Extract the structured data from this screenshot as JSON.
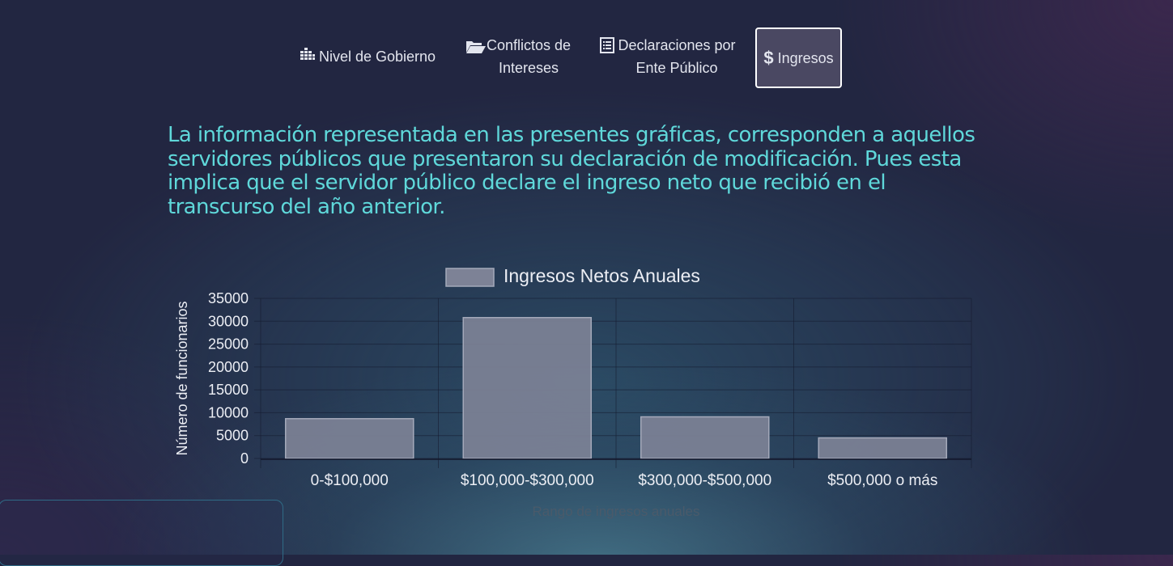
{
  "nav": {
    "tabs": [
      {
        "icon": "bar-list-icon",
        "label": "Nivel de Gobierno"
      },
      {
        "icon": "folder-open-icon",
        "label": "Conflictos de\nIntereses"
      },
      {
        "icon": "list-document-icon",
        "label": "Declaraciones por\nEnte Público"
      },
      {
        "icon": "dollar-icon",
        "label": "Ingresos",
        "active": true
      }
    ]
  },
  "info_text": "La información representada en las presentes gráficas, corresponden a aquellos servidores públicos que presentaron su declaración de modificación. Pues esta implica que el servidor público declare el ingreso neto que recibió en el transcurso del año anterior.",
  "colors": {
    "accent_text": "#5fd8da",
    "bar_fill": "#7d8296",
    "bar_border": "#a4a9ba",
    "active_tab_bg": "#4a4862"
  },
  "chart_data": {
    "type": "bar",
    "categories": [
      "0-$100,000",
      "$100,000-$300,000",
      "$300,000-$500,000",
      "$500,000 o más"
    ],
    "series": [
      {
        "name": "Ingresos Netos Anuales",
        "values": [
          8700,
          30800,
          9100,
          4500
        ]
      }
    ],
    "xlabel": "Rango de ingresos anuales",
    "ylabel": "Número de funcionarios",
    "ylim": [
      0,
      35000
    ],
    "yticks": [
      "35000",
      "30000",
      "25000",
      "20000",
      "15000",
      "10000",
      "5000",
      "0"
    ],
    "grid": true,
    "legend": "top-center"
  }
}
